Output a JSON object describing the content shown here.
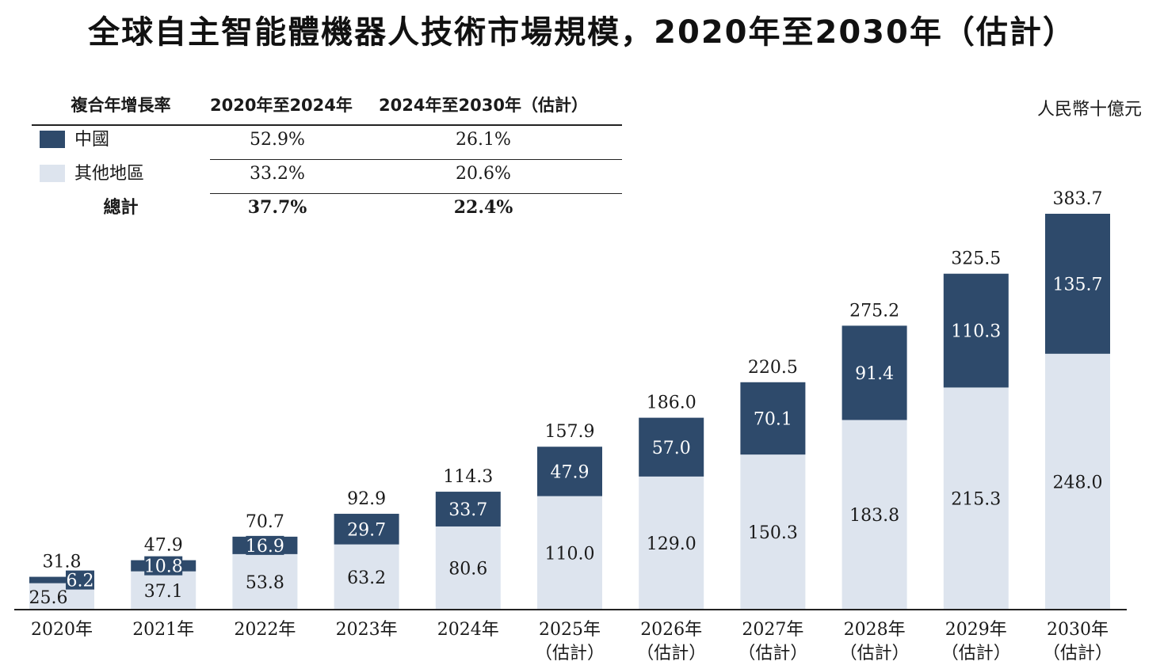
{
  "colors": {
    "china": "#2e4a6b",
    "other": "#dde4ee",
    "axis": "#222222",
    "text_dark": "#1a1a1a",
    "text_light": "#ffffff"
  },
  "title": "全球自主智能體機器人技術市場規模，2020年至2030年（估計）",
  "unit": "人民幣十億元",
  "cagr_table": {
    "header": [
      "複合年增長率",
      "2020年至2024年",
      "2024年至2030年（估計）"
    ],
    "rows": [
      {
        "label": "中國",
        "p1": "52.9%",
        "p2": "26.1%"
      },
      {
        "label": "其他地區",
        "p1": "33.2%",
        "p2": "20.6%"
      },
      {
        "label": "總計",
        "p1": "37.7%",
        "p2": "22.4%"
      }
    ]
  },
  "chart_data": {
    "type": "bar",
    "stacked": true,
    "categories": [
      "2020年",
      "2021年",
      "2022年",
      "2023年",
      "2024年",
      "2025年（估計）",
      "2026年（估計）",
      "2027年（估計）",
      "2028年（估計）",
      "2029年（估計）",
      "2030年（估計）"
    ],
    "category_lines": [
      [
        "2020年"
      ],
      [
        "2021年"
      ],
      [
        "2022年"
      ],
      [
        "2023年"
      ],
      [
        "2024年"
      ],
      [
        "2025年",
        "（估計）"
      ],
      [
        "2026年",
        "（估計）"
      ],
      [
        "2027年",
        "（估計）"
      ],
      [
        "2028年",
        "（估計）"
      ],
      [
        "2029年",
        "（估計）"
      ],
      [
        "2030年",
        "（估計）"
      ]
    ],
    "series": [
      {
        "name": "其他地區",
        "values": [
          25.6,
          37.1,
          53.8,
          63.2,
          80.6,
          110.0,
          129.0,
          150.3,
          183.8,
          215.3,
          248.0
        ],
        "labels": [
          "25.6",
          "37.1",
          "53.8",
          "63.2",
          "80.6",
          "110.0",
          "129.0",
          "150.3",
          "183.8",
          "215.3",
          "248.0"
        ]
      },
      {
        "name": "中國",
        "values": [
          6.2,
          10.8,
          16.9,
          29.7,
          33.7,
          47.9,
          57.0,
          70.1,
          91.4,
          110.3,
          135.7
        ],
        "labels": [
          "6.2",
          "10.8",
          "16.9",
          "29.7",
          "33.7",
          "47.9",
          "57.0",
          "70.1",
          "91.4",
          "110.3",
          "135.7"
        ]
      }
    ],
    "totals": [
      "31.8",
      "47.9",
      "70.7",
      "92.9",
      "114.3",
      "157.9",
      "186.0",
      "220.5",
      "275.2",
      "325.5",
      "383.7"
    ],
    "ylim": [
      0,
      383.7
    ]
  }
}
